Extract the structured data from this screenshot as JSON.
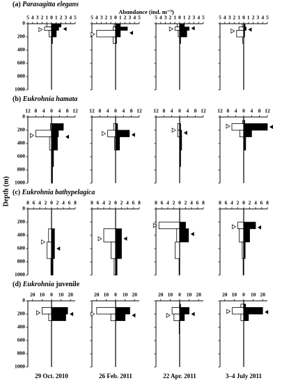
{
  "figure": {
    "ylabel": "Depth (m)",
    "xlabel": "Abundance (ind. m⁻³)",
    "dates": [
      "29 Oct. 2010",
      "26 Feb. 2011",
      "22 Apr. 2011",
      "3–4 July 2011"
    ],
    "ylim": [
      0,
      1000
    ],
    "yticks": [
      0,
      200,
      400,
      600,
      800,
      1000
    ],
    "depth_bins": [
      0,
      50,
      100,
      200,
      300,
      500,
      750,
      1000
    ],
    "day_color": "#ffffff",
    "night_color": "#000000"
  },
  "chart_data": [
    {
      "type": "kite",
      "label": "(a)",
      "taxon": "Parasagitta elegans",
      "xlim": [
        -5,
        5
      ],
      "xticks": [
        {
          "value": -5,
          "label": "5"
        },
        {
          "value": -4,
          "label": "4"
        },
        {
          "value": -3,
          "label": "3"
        },
        {
          "value": -2,
          "label": "2"
        },
        {
          "value": -1,
          "label": "1"
        },
        0,
        1,
        2,
        3,
        4,
        5
      ],
      "panels": [
        {
          "day": [
            1,
            1.5,
            0.5,
            0,
            0,
            0,
            0
          ],
          "night": [
            2,
            1.5,
            1,
            0.2,
            0,
            0,
            0
          ],
          "day_mean": 90,
          "night_mean": 80
        },
        {
          "day": [
            0.3,
            0.5,
            4,
            0.5,
            0,
            0,
            0
          ],
          "night": [
            1,
            2.5,
            1,
            0.2,
            0,
            0,
            0
          ],
          "day_mean": 160,
          "night_mean": 140
        },
        {
          "day": [
            0.5,
            1,
            0.3,
            0,
            0,
            0,
            0
          ],
          "night": [
            1,
            2,
            1.5,
            0.2,
            0,
            0,
            0
          ],
          "day_mean": 80,
          "night_mean": 70
        },
        {
          "day": [
            0.3,
            1,
            1.5,
            0.2,
            0,
            0,
            0
          ],
          "night": [
            0.3,
            0.5,
            0.2,
            0,
            0,
            0,
            0
          ],
          "day_mean": 110,
          "night_mean": 90
        }
      ]
    },
    {
      "type": "kite",
      "label": "(b)",
      "taxon": "Eukrohnia hamata",
      "xlim": [
        -12,
        12
      ],
      "xticks": [
        {
          "value": -12,
          "label": "12"
        },
        {
          "value": -8,
          "label": "8"
        },
        {
          "value": -4,
          "label": "4"
        },
        0,
        4,
        8,
        12
      ],
      "panels": [
        {
          "day": [
            0,
            0,
            0.5,
            8,
            1,
            0,
            0
          ],
          "night": [
            0,
            0,
            6,
            3.5,
            3,
            1,
            0.5
          ],
          "day_mean": 280,
          "night_mean": 300
        },
        {
          "day": [
            0,
            0,
            1,
            4,
            0.5,
            0,
            0
          ],
          "night": [
            0,
            0,
            1,
            7,
            2,
            0,
            0
          ],
          "day_mean": 250,
          "night_mean": 270
        },
        {
          "day": [
            0,
            0,
            1,
            1,
            0,
            0,
            0
          ],
          "night": [
            0,
            0,
            0.5,
            1,
            1,
            0.5,
            0
          ],
          "day_mean": 200,
          "night_mean": 240
        },
        {
          "day": [
            0,
            0.5,
            6,
            2,
            0,
            0,
            0
          ],
          "night": [
            0,
            0.5,
            12,
            4,
            1,
            0,
            0
          ],
          "day_mean": 140,
          "night_mean": 150
        }
      ]
    },
    {
      "type": "kite",
      "label": "(c)",
      "taxon": "Eukrohnia bathypelagica",
      "xlim": [
        -8,
        8
      ],
      "xticks": [
        {
          "value": -8,
          "label": "8"
        },
        {
          "value": -6,
          "label": "6"
        },
        {
          "value": -4,
          "label": "4"
        },
        {
          "value": -2,
          "label": "2"
        },
        0,
        2,
        4,
        6,
        8
      ],
      "panels": [
        {
          "day": [
            0,
            0,
            0,
            0,
            1,
            1.5,
            0.2
          ],
          "night": [
            0,
            0,
            0,
            0,
            1,
            1,
            0.5
          ],
          "day_mean": 500,
          "night_mean": 600
        },
        {
          "day": [
            0,
            0,
            0,
            0,
            4,
            1.5,
            0.5
          ],
          "night": [
            0,
            0,
            0,
            0,
            2,
            2,
            0.5
          ],
          "day_mean": 450,
          "night_mean": 450
        },
        {
          "day": [
            0,
            0,
            0,
            7,
            1,
            1.5,
            0.2
          ],
          "night": [
            0,
            0,
            0,
            2,
            3,
            0,
            0
          ],
          "day_mean": 250,
          "night_mean": 380
        },
        {
          "day": [
            0,
            0,
            0,
            2,
            1.5,
            0.5,
            0.2
          ],
          "night": [
            0,
            0,
            0,
            4,
            2,
            0.5,
            0
          ],
          "day_mean": 270,
          "night_mean": 280
        }
      ]
    },
    {
      "type": "kite",
      "label": "(d)",
      "taxon": "Eukrohnia",
      "stage": "juvenile",
      "xlim": [
        -25,
        25
      ],
      "xticks": [
        {
          "value": -20,
          "label": "20"
        },
        {
          "value": -10,
          "label": "10"
        },
        0,
        10,
        20
      ],
      "panels": [
        {
          "day": [
            0,
            0,
            10,
            3,
            0,
            0,
            0
          ],
          "night": [
            0,
            0,
            17,
            15,
            0,
            0,
            0
          ],
          "day_mean": 180,
          "night_mean": 200
        },
        {
          "day": [
            0,
            0,
            20,
            5,
            0,
            0,
            0
          ],
          "night": [
            0,
            0,
            15,
            10,
            0,
            0,
            0
          ],
          "day_mean": 200,
          "night_mean": 220
        },
        {
          "day": [
            0,
            0,
            8,
            6,
            0.5,
            0,
            0
          ],
          "night": [
            0,
            1,
            10,
            5,
            0,
            0,
            0
          ],
          "day_mean": 220,
          "night_mean": 200
        },
        {
          "day": [
            0,
            3,
            12,
            3,
            0,
            0,
            0
          ],
          "night": [
            0,
            2,
            20,
            5,
            0,
            0,
            0
          ],
          "day_mean": 160,
          "night_mean": 170
        }
      ]
    }
  ]
}
